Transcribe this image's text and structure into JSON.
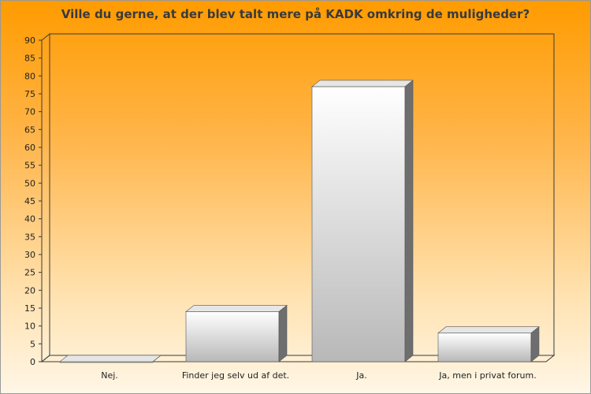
{
  "chart_data": {
    "type": "bar",
    "title": "Ville du gerne, at der blev talt mere på KADK omkring de muligheder?",
    "categories": [
      "Nej.",
      "Finder jeg selv ud af det.",
      "Ja.",
      "Ja, men i privat forum."
    ],
    "values": [
      0,
      14,
      77,
      8
    ],
    "ylim": [
      0,
      90
    ],
    "yticks": [
      0,
      5,
      10,
      15,
      20,
      25,
      30,
      35,
      40,
      45,
      50,
      55,
      60,
      65,
      70,
      75,
      80,
      85,
      90
    ],
    "xlabel": "",
    "ylabel": "",
    "grid": false,
    "colors": {
      "bar_light": "#ffffff",
      "bar_dark": "#b8b8b8",
      "side": "#6e6e6e",
      "top": "#e6e6e6"
    }
  }
}
